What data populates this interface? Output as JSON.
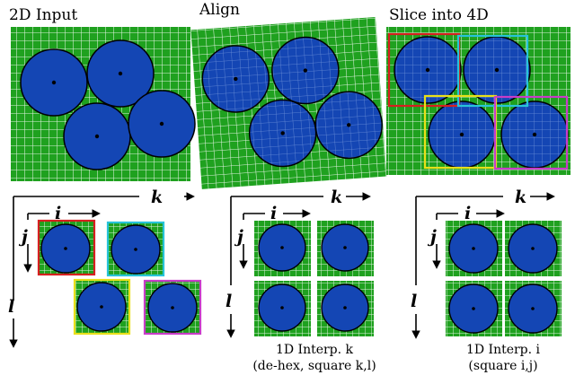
{
  "panels": {
    "input_title": "2D Input",
    "align_title": "Align",
    "slice_title": "Slice into 4D"
  },
  "axes": {
    "i": "i",
    "j": "j",
    "k": "k",
    "l": "l"
  },
  "captions": {
    "mid_line1": "1D Interp. k",
    "mid_line2": "(de-hex, square k,l)",
    "right_line1": "1D Interp. i",
    "right_line2": "(square i,j)"
  },
  "colors": {
    "grid_green": "#1fa11f",
    "grid_line": "#ffffff",
    "circle_blue": "#1446b4",
    "outline": "#000000",
    "box_red": "#d61f1f",
    "box_cyan": "#27c3d8",
    "box_yellow": "#e8e01a",
    "box_magenta": "#c83cc8"
  }
}
